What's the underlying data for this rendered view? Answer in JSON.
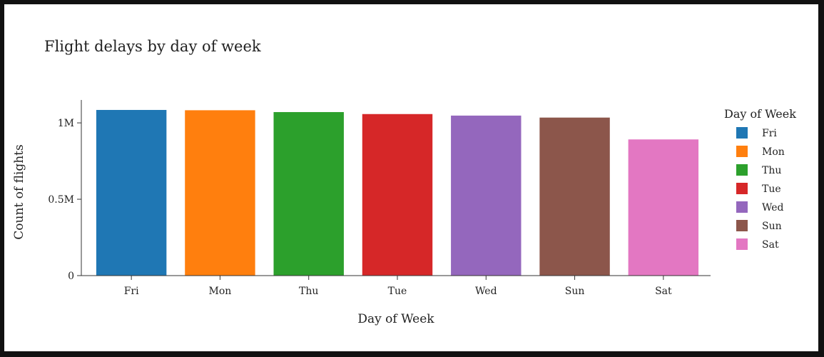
{
  "chart_data": {
    "type": "bar",
    "title": "Flight delays by day of week",
    "xlabel": "Day of Week",
    "ylabel": "Count of flights",
    "categories": [
      "Fri",
      "Mon",
      "Thu",
      "Tue",
      "Wed",
      "Sun",
      "Sat"
    ],
    "values": [
      1087000,
      1085000,
      1073000,
      1060000,
      1050000,
      1037000,
      894000
    ],
    "colors": [
      "#1f77b4",
      "#ff7f0e",
      "#2ca02c",
      "#d62728",
      "#9467bd",
      "#8c564b",
      "#e377c2"
    ],
    "ylim": [
      0,
      1150000
    ],
    "yticks": [
      {
        "value": 0,
        "label": "0"
      },
      {
        "value": 500000,
        "label": "0.5M"
      },
      {
        "value": 1000000,
        "label": "1M"
      }
    ],
    "grid": false,
    "legend": {
      "title": "Day of Week",
      "placement": "right",
      "entries": [
        "Fri",
        "Mon",
        "Thu",
        "Tue",
        "Wed",
        "Sun",
        "Sat"
      ]
    }
  }
}
